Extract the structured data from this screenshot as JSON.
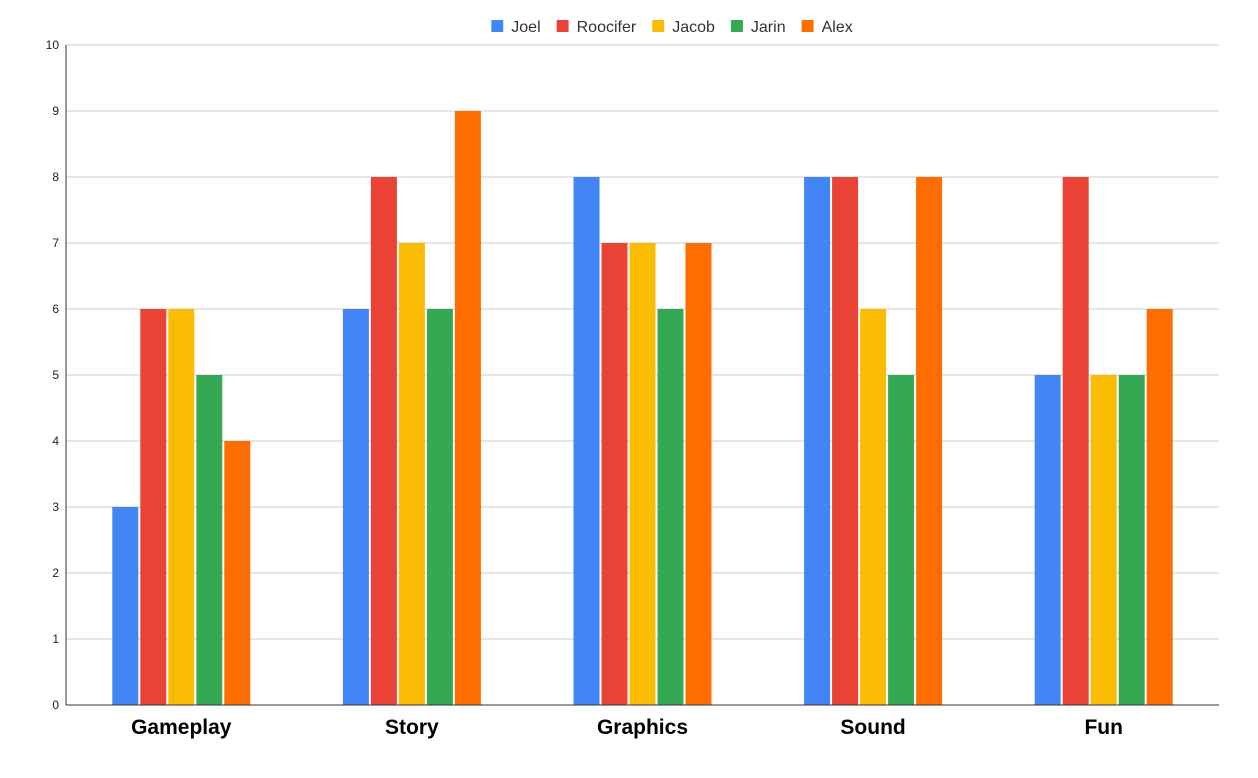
{
  "chart_data": {
    "type": "bar",
    "title": "",
    "xlabel": "",
    "ylabel": "",
    "categories": [
      "Gameplay",
      "Story",
      "Graphics",
      "Sound",
      "Fun"
    ],
    "series": [
      {
        "name": "Joel",
        "color": "#4285F4",
        "values": [
          3,
          6,
          8,
          8,
          5
        ]
      },
      {
        "name": "Roocifer",
        "color": "#EA4335",
        "values": [
          6,
          8,
          7,
          8,
          8
        ]
      },
      {
        "name": "Jacob",
        "color": "#FBBC04",
        "values": [
          6,
          7,
          7,
          6,
          5
        ]
      },
      {
        "name": "Jarin",
        "color": "#34A853",
        "values": [
          5,
          6,
          6,
          5,
          5
        ]
      },
      {
        "name": "Alex",
        "color": "#FF6D01",
        "values": [
          4,
          9,
          7,
          8,
          6
        ]
      }
    ],
    "ylim": [
      0,
      10
    ],
    "yticks": [
      "0",
      "1",
      "2",
      "3",
      "4",
      "5",
      "6",
      "7",
      "8",
      "9",
      "10"
    ],
    "grid": true,
    "legend_position": "top-center"
  }
}
